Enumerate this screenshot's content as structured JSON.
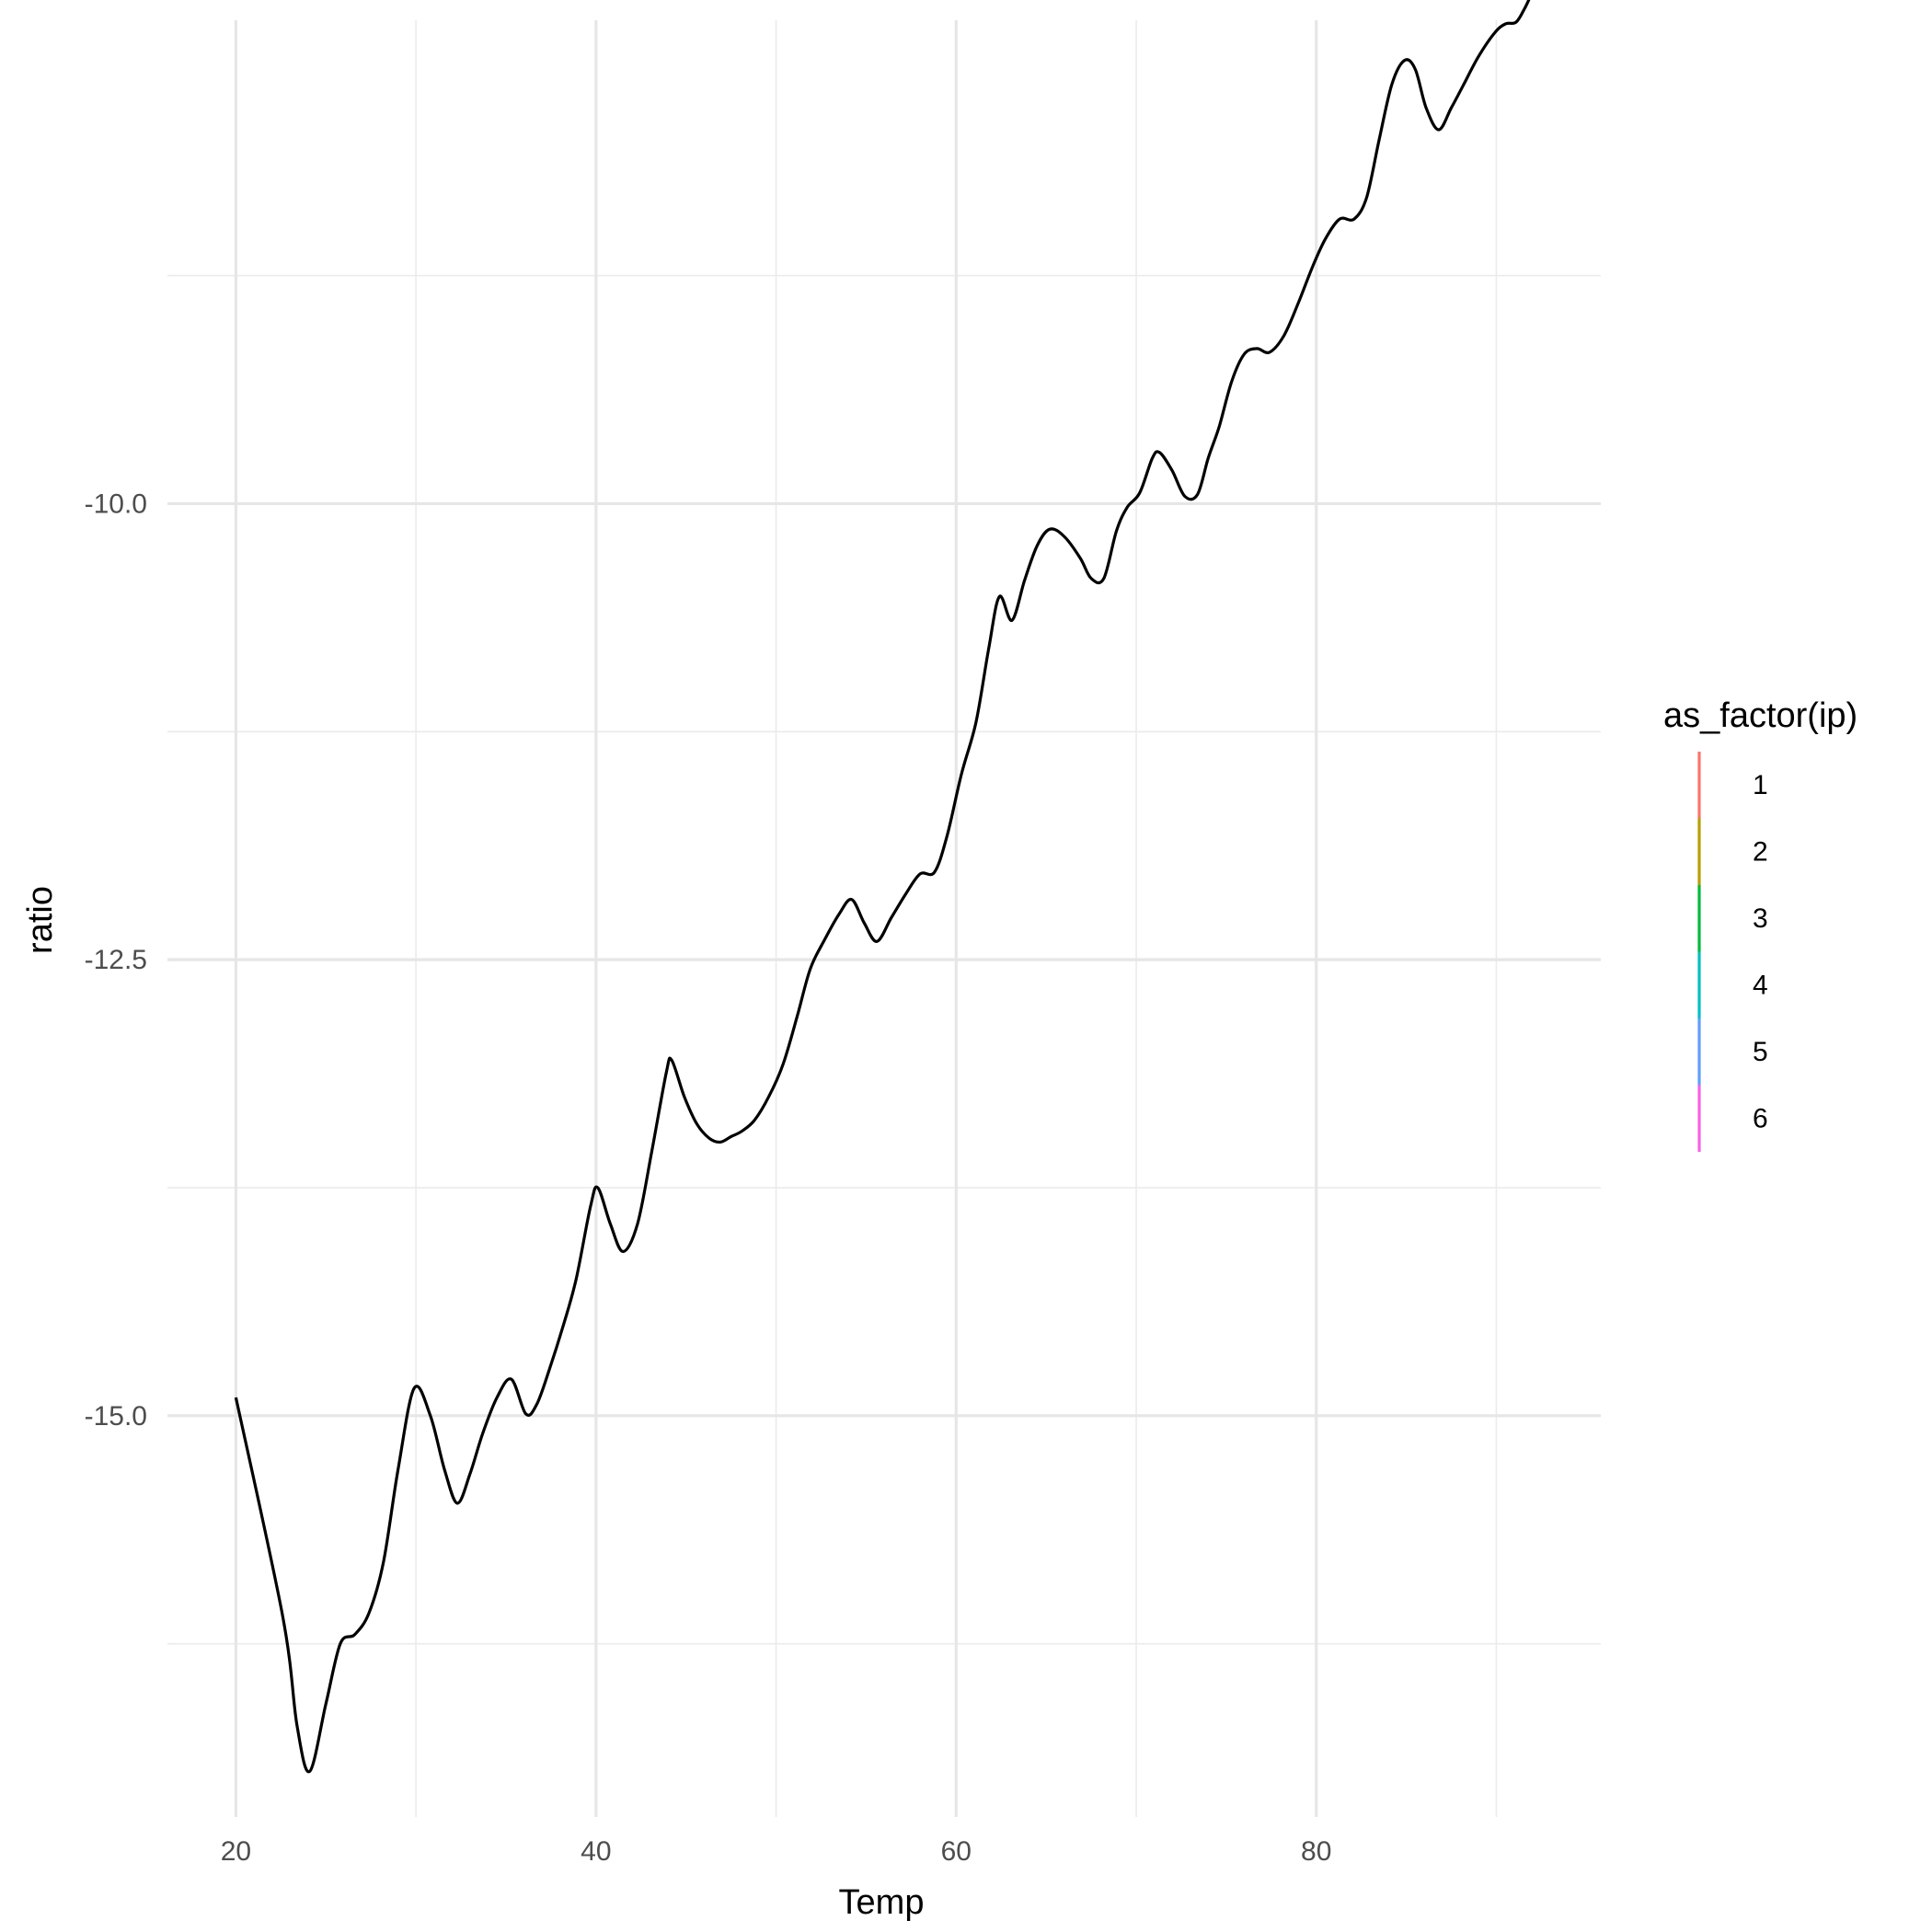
{
  "chart_data": {
    "type": "line",
    "title": "",
    "xlabel": "Temp",
    "ylabel": "ratio",
    "xlim": [
      16.2,
      95.8
    ],
    "ylim": [
      -17.2,
      -7.35
    ],
    "x_ticks": [
      20,
      40,
      60,
      80
    ],
    "x_tick_labels": [
      "20",
      "40",
      "60",
      "80"
    ],
    "x_minor": [
      30,
      50,
      70,
      90
    ],
    "y_ticks": [
      -15.0,
      -12.5,
      -10.0
    ],
    "y_tick_labels": [
      "-15.0",
      "-12.5",
      "-10.0"
    ],
    "y_minor": [
      -16.25,
      -13.75,
      -11.25,
      -8.75
    ],
    "grid": true,
    "legend": {
      "title": "as_factor(ip)",
      "position": "right",
      "entries": [
        {
          "label": "1",
          "color": "#F8766D"
        },
        {
          "label": "2",
          "color": "#B79F00"
        },
        {
          "label": "3",
          "color": "#00BA38"
        },
        {
          "label": "4",
          "color": "#00BFC4"
        },
        {
          "label": "5",
          "color": "#619CFF"
        },
        {
          "label": "6",
          "color": "#F564E3"
        }
      ]
    },
    "series": [
      {
        "color": "#000000",
        "x": [
          20,
          22.6,
          23.4,
          24.1,
          25.0,
          25.8,
          26.6,
          27.4,
          28.2,
          29.0,
          29.9,
          30.8,
          31.6,
          32.3,
          33.0,
          33.7,
          34.5,
          35.3,
          36.1,
          36.7,
          37.4,
          38.2,
          38.9,
          39.7,
          40.1,
          40.8,
          41.5,
          42.3,
          43.1,
          43.9,
          44.2,
          44.9,
          45.6,
          46.3,
          46.9,
          47.5,
          48.1,
          48.8,
          49.6,
          50.4,
          51.2,
          51.9,
          52.7,
          53.5,
          54.2,
          54.9,
          55.6,
          56.4,
          57.2,
          58.0,
          58.8,
          59.5,
          60.3,
          61.1,
          61.8,
          62.4,
          63.1,
          63.8,
          64.5,
          65.2,
          66.0,
          66.9,
          67.5,
          68.2,
          68.9,
          69.5,
          70.2,
          70.9,
          71.3,
          72.0,
          72.7,
          73.4,
          74.0,
          74.6,
          75.3,
          76.0,
          76.7,
          77.4,
          78.2,
          79.0,
          79.8,
          80.5,
          81.3,
          82.1,
          82.8,
          83.5,
          84.2,
          84.9,
          85.5,
          86.1,
          86.8,
          87.5,
          88.2,
          89.0,
          89.9,
          90.5,
          91.1,
          91.6,
          92.1,
          92.6,
          93.4,
          94.1,
          95.0
        ],
        "y": [
          -14.9,
          -16.1,
          -16.7,
          -16.95,
          -16.58,
          -16.25,
          -16.2,
          -16.08,
          -15.8,
          -15.3,
          -14.85,
          -15.0,
          -15.3,
          -15.48,
          -15.32,
          -15.1,
          -14.9,
          -14.8,
          -14.99,
          -14.94,
          -14.75,
          -14.5,
          -14.25,
          -13.85,
          -13.75,
          -13.95,
          -14.1,
          -13.95,
          -13.55,
          -13.12,
          -13.05,
          -13.25,
          -13.4,
          -13.48,
          -13.5,
          -13.47,
          -13.44,
          -13.38,
          -13.25,
          -13.07,
          -12.8,
          -12.55,
          -12.39,
          -12.25,
          -12.17,
          -12.3,
          -12.4,
          -12.27,
          -12.14,
          -12.03,
          -12.02,
          -11.82,
          -11.48,
          -11.2,
          -10.8,
          -10.51,
          -10.64,
          -10.42,
          -10.23,
          -10.14,
          -10.18,
          -10.3,
          -10.41,
          -10.41,
          -10.15,
          -10.02,
          -9.94,
          -9.75,
          -9.72,
          -9.82,
          -9.96,
          -9.95,
          -9.75,
          -9.58,
          -9.33,
          -9.18,
          -9.15,
          -9.17,
          -9.08,
          -8.9,
          -8.7,
          -8.55,
          -8.44,
          -8.44,
          -8.32,
          -8.0,
          -7.7,
          -7.57,
          -7.62,
          -7.83,
          -7.95,
          -7.83,
          -7.7,
          -7.55,
          -7.42,
          -7.37,
          -7.36,
          -7.28,
          -7.18,
          -7.14,
          -7.11,
          -7.12,
          -7.16
        ]
      }
    ]
  }
}
